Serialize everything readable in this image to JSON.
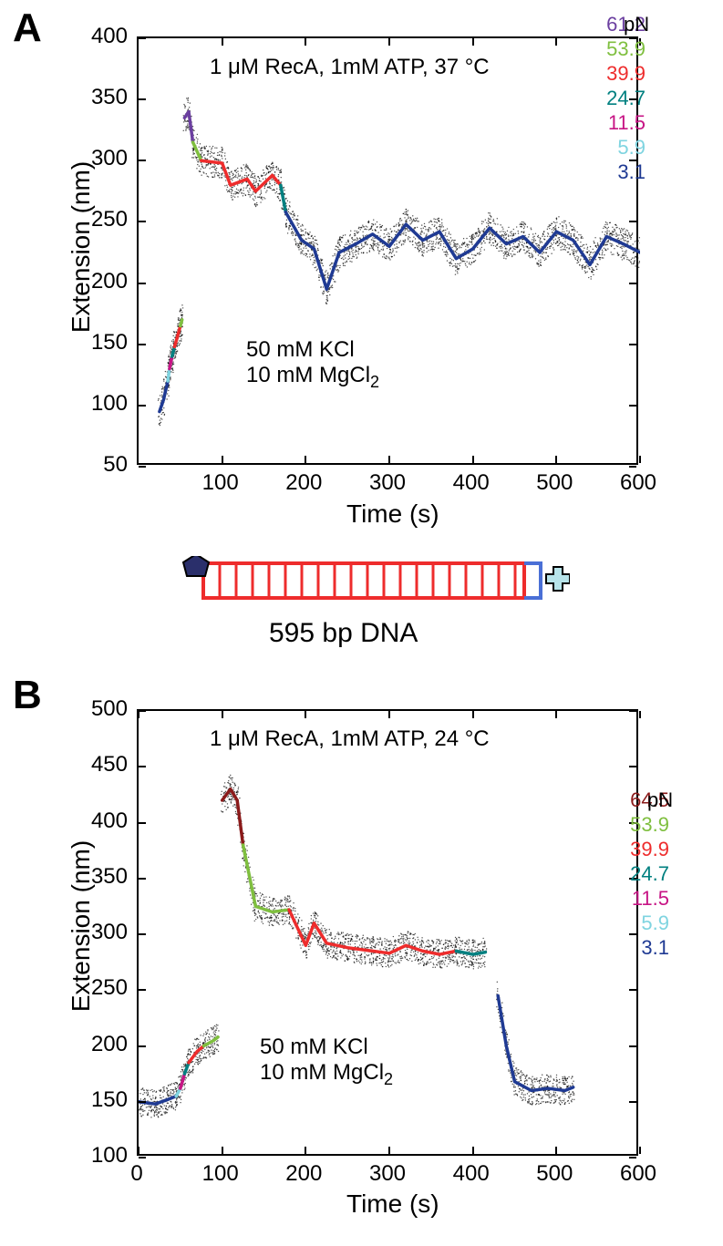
{
  "panelA": {
    "label": "A",
    "title": "1 μM RecA, 1mM ATP, 37 °C",
    "buffer1": "50 mM KCl",
    "buffer2": "10 mM MgCl",
    "buffer2sub": "2",
    "ylabel": "Extension (nm)",
    "xlabel": "Time (s)",
    "ylim": [
      50,
      400
    ],
    "ytick_step": 50,
    "yticks": [
      50,
      100,
      150,
      200,
      250,
      300,
      350,
      400
    ],
    "xlim": [
      0,
      600
    ],
    "xtick_step": 100,
    "xticks": [
      100,
      200,
      300,
      400,
      500,
      600
    ],
    "legend": [
      {
        "value": "61.2",
        "unit": "pN",
        "color": "#6b3fa0"
      },
      {
        "value": "53.9",
        "color": "#7fbf3f"
      },
      {
        "value": "39.9",
        "color": "#ee2c2c"
      },
      {
        "value": "24.7",
        "color": "#008080"
      },
      {
        "value": "11.5",
        "color": "#c71585"
      },
      {
        "value": "5.9",
        "color": "#7fd4e0"
      },
      {
        "value": "3.1",
        "color": "#1f3a93"
      }
    ],
    "scatter_cloud_color": "#000000",
    "trace_segments": [
      {
        "color": "#1f3a93",
        "points": [
          [
            25,
            95
          ],
          [
            30,
            105
          ],
          [
            35,
            120
          ]
        ]
      },
      {
        "color": "#7fd4e0",
        "points": [
          [
            35,
            120
          ],
          [
            37,
            130
          ]
        ]
      },
      {
        "color": "#c71585",
        "points": [
          [
            37,
            130
          ],
          [
            40,
            140
          ]
        ]
      },
      {
        "color": "#008080",
        "points": [
          [
            40,
            140
          ],
          [
            43,
            148
          ]
        ]
      },
      {
        "color": "#ee2c2c",
        "points": [
          [
            43,
            148
          ],
          [
            46,
            155
          ],
          [
            50,
            165
          ]
        ]
      },
      {
        "color": "#7fbf3f",
        "points": [
          [
            50,
            165
          ],
          [
            52,
            170
          ]
        ]
      },
      {
        "color": "#6b3fa0",
        "points": [
          [
            55,
            335
          ],
          [
            60,
            340
          ],
          [
            65,
            315
          ]
        ]
      },
      {
        "color": "#7fbf3f",
        "points": [
          [
            65,
            315
          ],
          [
            75,
            300
          ]
        ]
      },
      {
        "color": "#ee2c2c",
        "points": [
          [
            75,
            300
          ],
          [
            100,
            298
          ],
          [
            110,
            280
          ],
          [
            130,
            285
          ],
          [
            140,
            275
          ],
          [
            160,
            288
          ],
          [
            170,
            280
          ]
        ]
      },
      {
        "color": "#008080",
        "points": [
          [
            170,
            280
          ],
          [
            176,
            258
          ]
        ]
      },
      {
        "color": "#1f3a93",
        "points": [
          [
            176,
            258
          ],
          [
            195,
            235
          ],
          [
            210,
            228
          ],
          [
            225,
            195
          ],
          [
            240,
            225
          ],
          [
            260,
            232
          ],
          [
            280,
            240
          ],
          [
            300,
            230
          ],
          [
            320,
            248
          ],
          [
            340,
            235
          ],
          [
            360,
            242
          ],
          [
            380,
            220
          ],
          [
            400,
            228
          ],
          [
            420,
            245
          ],
          [
            440,
            232
          ],
          [
            460,
            238
          ],
          [
            480,
            225
          ],
          [
            500,
            242
          ],
          [
            520,
            235
          ],
          [
            540,
            215
          ],
          [
            560,
            238
          ],
          [
            580,
            232
          ],
          [
            600,
            225
          ]
        ]
      }
    ]
  },
  "dna": {
    "label": "595 bp DNA",
    "ladder_color": "#ee2c2c",
    "end_color": "#4a6fd6",
    "pentagon_color": "#2a2f6b",
    "cross_color": "#b7e4ea"
  },
  "panelB": {
    "label": "B",
    "title": "1 μM RecA, 1mM ATP, 24 °C",
    "buffer1": "50 mM KCl",
    "buffer2": "10 mM MgCl",
    "buffer2sub": "2",
    "ylabel": "Extension (nm)",
    "xlabel": "Time (s)",
    "ylim": [
      100,
      500
    ],
    "ytick_step": 50,
    "yticks": [
      100,
      150,
      200,
      250,
      300,
      350,
      400,
      450,
      500
    ],
    "xlim": [
      0,
      600
    ],
    "xtick_step": 100,
    "xticks": [
      0,
      100,
      200,
      300,
      400,
      500,
      600
    ],
    "legend": [
      {
        "value": "64.5",
        "unit": "pN",
        "color": "#8b1a1a"
      },
      {
        "value": "53.9",
        "color": "#7fbf3f"
      },
      {
        "value": "39.9",
        "color": "#ee2c2c"
      },
      {
        "value": "24.7",
        "color": "#008080"
      },
      {
        "value": "11.5",
        "color": "#c71585"
      },
      {
        "value": "5.9",
        "color": "#7fd4e0"
      },
      {
        "value": "3.1",
        "color": "#1f3a93"
      }
    ],
    "scatter_cloud_color": "#000000",
    "trace_segments": [
      {
        "color": "#1f3a93",
        "points": [
          [
            0,
            150
          ],
          [
            20,
            148
          ],
          [
            35,
            152
          ],
          [
            45,
            155
          ]
        ]
      },
      {
        "color": "#7fd4e0",
        "points": [
          [
            45,
            155
          ],
          [
            50,
            162
          ]
        ]
      },
      {
        "color": "#c71585",
        "points": [
          [
            50,
            162
          ],
          [
            55,
            175
          ]
        ]
      },
      {
        "color": "#008080",
        "points": [
          [
            55,
            175
          ],
          [
            60,
            185
          ]
        ]
      },
      {
        "color": "#ee2c2c",
        "points": [
          [
            60,
            185
          ],
          [
            70,
            195
          ],
          [
            78,
            200
          ]
        ]
      },
      {
        "color": "#7fbf3f",
        "points": [
          [
            78,
            200
          ],
          [
            90,
            205
          ],
          [
            95,
            208
          ]
        ]
      },
      {
        "color": "#8b1a1a",
        "points": [
          [
            100,
            420
          ],
          [
            110,
            430
          ],
          [
            118,
            420
          ],
          [
            125,
            380
          ]
        ]
      },
      {
        "color": "#7fbf3f",
        "points": [
          [
            125,
            380
          ],
          [
            140,
            325
          ],
          [
            160,
            320
          ],
          [
            180,
            322
          ]
        ]
      },
      {
        "color": "#ee2c2c",
        "points": [
          [
            180,
            322
          ],
          [
            200,
            290
          ],
          [
            210,
            310
          ],
          [
            225,
            292
          ],
          [
            250,
            288
          ],
          [
            280,
            285
          ],
          [
            300,
            283
          ],
          [
            320,
            290
          ],
          [
            340,
            285
          ],
          [
            360,
            282
          ],
          [
            380,
            285
          ]
        ]
      },
      {
        "color": "#008080",
        "points": [
          [
            380,
            285
          ],
          [
            400,
            282
          ],
          [
            415,
            284
          ]
        ]
      },
      {
        "color": "#1f3a93",
        "points": [
          [
            430,
            245
          ],
          [
            440,
            200
          ],
          [
            450,
            168
          ],
          [
            470,
            160
          ],
          [
            490,
            162
          ],
          [
            510,
            160
          ],
          [
            520,
            163
          ]
        ]
      }
    ]
  },
  "style": {
    "bg": "#ffffff",
    "axis_color": "#000000",
    "label_fontsize": 28,
    "tick_fontsize": 24,
    "annotation_fontsize": 24,
    "legend_fontsize": 22
  }
}
